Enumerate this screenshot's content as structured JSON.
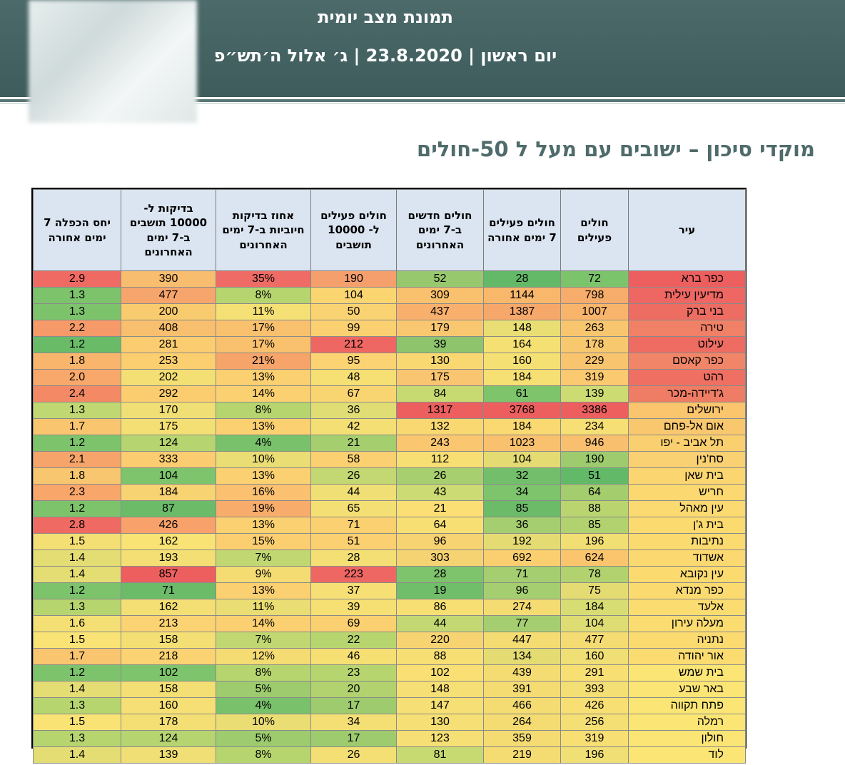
{
  "header": {
    "title": "תמונת מצב יומית",
    "subtitle": "יום ראשון | 23.8.2020 | ג׳ אלול ה׳תש״פ"
  },
  "heading": "מוקדי סיכון – ישובים עם מעל ל 50-חולים",
  "table": {
    "columns": [
      "עיר",
      "חולים פעילים",
      "חולים פעילים 7 ימים אחורה",
      "חולים חדשים ב-7 ימים האחרונים",
      "חולים פעילים ל- 10000 תושבים",
      "אחוז בדיקות חיוביות ב-7 ימים האחרונים",
      "בדיקות ל- 10000 תושבים ב-7 ימים האחרונים",
      "יחס הכפלה 7 ימים אחורה"
    ],
    "rows": [
      [
        "כפר ברא",
        "72",
        "28",
        "52",
        "190",
        "35%",
        "390",
        "2.9"
      ],
      [
        "מדיעין עילית",
        "798",
        "1144",
        "309",
        "104",
        "8%",
        "477",
        "1.3"
      ],
      [
        "בני ברק",
        "1007",
        "1387",
        "437",
        "50",
        "11%",
        "200",
        "1.3"
      ],
      [
        "טירה",
        "263",
        "148",
        "179",
        "99",
        "17%",
        "408",
        "2.2"
      ],
      [
        "עילוט",
        "178",
        "164",
        "39",
        "212",
        "17%",
        "281",
        "1.2"
      ],
      [
        "כפר קאסם",
        "229",
        "160",
        "130",
        "95",
        "21%",
        "253",
        "1.8"
      ],
      [
        "רהט",
        "319",
        "184",
        "175",
        "48",
        "13%",
        "202",
        "2.0"
      ],
      [
        "ג'דיידה-מכר",
        "139",
        "61",
        "84",
        "67",
        "14%",
        "292",
        "2.4"
      ],
      [
        "ירושלים",
        "3386",
        "3768",
        "1317",
        "36",
        "8%",
        "170",
        "1.3"
      ],
      [
        "אום אל-פחם",
        "234",
        "184",
        "132",
        "42",
        "13%",
        "175",
        "1.7"
      ],
      [
        "תל אביב - יפו",
        "946",
        "1023",
        "243",
        "21",
        "4%",
        "124",
        "1.2"
      ],
      [
        "סח'נין",
        "190",
        "104",
        "112",
        "58",
        "10%",
        "333",
        "2.1"
      ],
      [
        "בית שאן",
        "51",
        "32",
        "26",
        "26",
        "13%",
        "104",
        "1.8"
      ],
      [
        "חריש",
        "64",
        "34",
        "43",
        "44",
        "16%",
        "184",
        "2.3"
      ],
      [
        "עין מאהל",
        "88",
        "85",
        "21",
        "65",
        "19%",
        "87",
        "1.2"
      ],
      [
        "בית ג'ן",
        "85",
        "36",
        "64",
        "71",
        "13%",
        "426",
        "2.8"
      ],
      [
        "נתיבות",
        "196",
        "192",
        "96",
        "51",
        "15%",
        "162",
        "1.5"
      ],
      [
        "אשדוד",
        "624",
        "692",
        "303",
        "28",
        "7%",
        "193",
        "1.4"
      ],
      [
        "עין נקובא",
        "78",
        "71",
        "28",
        "223",
        "9%",
        "857",
        "1.4"
      ],
      [
        "כפר מנדא",
        "75",
        "96",
        "19",
        "37",
        "13%",
        "71",
        "1.2"
      ],
      [
        "אלעד",
        "184",
        "274",
        "86",
        "39",
        "11%",
        "162",
        "1.3"
      ],
      [
        "מעלה עירון",
        "104",
        "77",
        "44",
        "69",
        "14%",
        "213",
        "1.6"
      ],
      [
        "נתניה",
        "477",
        "447",
        "220",
        "22",
        "7%",
        "158",
        "1.5"
      ],
      [
        "אור יהודה",
        "160",
        "134",
        "88",
        "46",
        "12%",
        "218",
        "1.7"
      ],
      [
        "בית שמש",
        "291",
        "439",
        "102",
        "23",
        "8%",
        "102",
        "1.2"
      ],
      [
        "באר שבע",
        "393",
        "391",
        "148",
        "20",
        "5%",
        "158",
        "1.4"
      ],
      [
        "פתח תקווה",
        "426",
        "466",
        "147",
        "17",
        "4%",
        "160",
        "1.3"
      ],
      [
        "רמלה",
        "256",
        "264",
        "130",
        "34",
        "10%",
        "178",
        "1.5"
      ],
      [
        "חולון",
        "319",
        "359",
        "123",
        "17",
        "5%",
        "124",
        "1.3"
      ],
      [
        "לוד",
        "196",
        "219",
        "81",
        "26",
        "8%",
        "139",
        "1.4"
      ]
    ],
    "colors": [
      [
        "#ed5f5f",
        "#7cc46c",
        "#63b968",
        "#97c86e",
        "#f59f6d",
        "#ee6c65",
        "#f8bd6e",
        "#ee6a63"
      ],
      [
        "#ee6763",
        "#f6ac6a",
        "#f9b76c",
        "#f9c06e",
        "#fbd670",
        "#b7d56f",
        "#f6a56c",
        "#7cc36c"
      ],
      [
        "#ee6d63",
        "#f9b46c",
        "#f6a86a",
        "#f8b06c",
        "#f9d371",
        "#f4e075",
        "#f8cb6f",
        "#7cc36c"
      ],
      [
        "#f08066",
        "#f8c66e",
        "#e8de73",
        "#fac771",
        "#fbd070",
        "#f9c16e",
        "#f8bf6e",
        "#f59a68"
      ],
      [
        "#ee6c62",
        "#f8c86e",
        "#f5e073",
        "#8dc46c",
        "#ef6763",
        "#f9c16e",
        "#fbcd70",
        "#69bb68"
      ],
      [
        "#f18567",
        "#f9c46e",
        "#f5e073",
        "#f9d872",
        "#fcd372",
        "#f6a46a",
        "#fbcf70",
        "#f9b56b"
      ],
      [
        "#ef7062",
        "#fbc970",
        "#f6df73",
        "#fac570",
        "#f6df73",
        "#fbd070",
        "#f3df74",
        "#f8a86a"
      ],
      [
        "#ef7c64",
        "#cddb73",
        "#7dc46b",
        "#c7d971",
        "#f9d572",
        "#fbd070",
        "#fbcd6f",
        "#f38a65"
      ],
      [
        "#fbc56e",
        "#ed5f5f",
        "#ed5f5f",
        "#ed5f5f",
        "#dfdd74",
        "#b7d56f",
        "#f0df75",
        "#c0d872"
      ],
      [
        "#f9c86e",
        "#f6df74",
        "#fad872",
        "#f9d872",
        "#f3df74",
        "#fbd070",
        "#f4df74",
        "#f9c56e"
      ],
      [
        "#f9cf70",
        "#f8c06e",
        "#f9c06e",
        "#fac670",
        "#a5ce6f",
        "#79c16a",
        "#b6d570",
        "#7cc36c"
      ],
      [
        "#f9d072",
        "#9dcb6e",
        "#e4dc73",
        "#f7df74",
        "#fbd070",
        "#e9dd73",
        "#fbcd70",
        "#f6a46a"
      ],
      [
        "#fbd670",
        "#62b968",
        "#73be6a",
        "#a8cf6f",
        "#c3d772",
        "#fbd070",
        "#7dc46c",
        "#f8c66e"
      ],
      [
        "#fbd870",
        "#a4cd6e",
        "#7dc46c",
        "#ccdb73",
        "#f0df74",
        "#fbc170",
        "#f8d372",
        "#f8a66a"
      ],
      [
        "#fbda71",
        "#bad56f",
        "#6cbb69",
        "#fbdf75",
        "#f4df74",
        "#f8ac6b",
        "#6bbb69",
        "#7cc36c"
      ],
      [
        "#fbda70",
        "#b1d26e",
        "#a4ce6f",
        "#f8df74",
        "#fbd070",
        "#fbd070",
        "#f8a16b",
        "#ee6a63"
      ],
      [
        "#fbda70",
        "#f2df74",
        "#e4dc73",
        "#f8d372",
        "#fbd070",
        "#fbcf70",
        "#f9e375",
        "#f4df74"
      ],
      [
        "#fbd870",
        "#fbc56e",
        "#fbce70",
        "#f6d372",
        "#f4df74",
        "#c0d772",
        "#f4df74",
        "#e4dd74"
      ],
      [
        "#fbda70",
        "#b1d26e",
        "#a4ce6f",
        "#7ec46c",
        "#ef6763",
        "#f4dc73",
        "#ed5f5f",
        "#e4dd74"
      ],
      [
        "#fbda70",
        "#e4dc73",
        "#a4ce6f",
        "#70bd6a",
        "#f6df74",
        "#fbd070",
        "#6bbb69",
        "#7cc36c"
      ],
      [
        "#fbdc71",
        "#d8dd73",
        "#f4dc73",
        "#f8df74",
        "#f6df73",
        "#e9dd73",
        "#f4df74",
        "#b7d56f"
      ],
      [
        "#fbdc71",
        "#dedd74",
        "#a4ce6f",
        "#c3d772",
        "#fbd070",
        "#fbd070",
        "#fbd372",
        "#f4df74"
      ],
      [
        "#fbda70",
        "#f4dc73",
        "#f4dc73",
        "#f8d372",
        "#b7d56f",
        "#c0d772",
        "#f4df74",
        "#f9e375"
      ],
      [
        "#fbdc71",
        "#f0df74",
        "#e4dc73",
        "#f8df74",
        "#f6df73",
        "#f4dc73",
        "#fbd372",
        "#f9c56e"
      ],
      [
        "#fbe575",
        "#f8df74",
        "#f4dc73",
        "#f9df74",
        "#b7d56f",
        "#b7d56f",
        "#7dc46c",
        "#7cc36c"
      ],
      [
        "#fbe575",
        "#f4df74",
        "#f4dc73",
        "#f6df74",
        "#b1d26e",
        "#9dcb6e",
        "#f4df74",
        "#e4dd74"
      ],
      [
        "#fbe575",
        "#f8df74",
        "#f4dc73",
        "#f6df74",
        "#9dcb6e",
        "#79c16a",
        "#f6df74",
        "#b7d56f"
      ],
      [
        "#fbe575",
        "#f4df74",
        "#f4dc73",
        "#f6df74",
        "#f4df74",
        "#e9dd73",
        "#f4df74",
        "#f9e375"
      ],
      [
        "#fbe575",
        "#f8df74",
        "#f4dc73",
        "#f6df74",
        "#9dcb6e",
        "#9dcb6e",
        "#b6d570",
        "#b7d56f"
      ],
      [
        "#fbe575",
        "#f0df74",
        "#f4dc73",
        "#c7d971",
        "#f4df74",
        "#b7d56f",
        "#f0df75",
        "#e4dd74"
      ]
    ]
  }
}
